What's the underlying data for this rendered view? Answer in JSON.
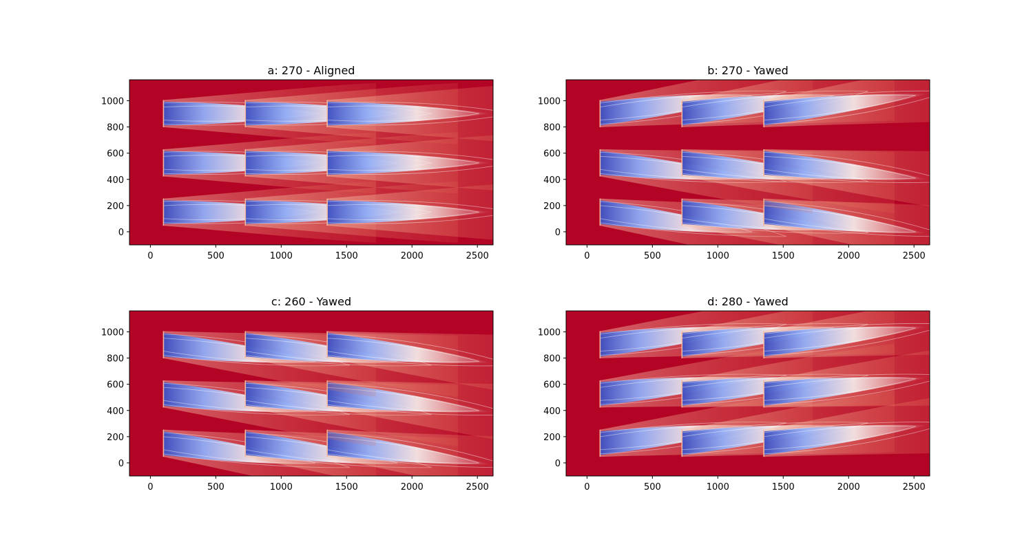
{
  "colors": {
    "background": "#b40426",
    "wake_deep": "#3b4cc0",
    "wake_light": "#f7f7f7",
    "contour_line": "#ffffff",
    "colormap": "coolwarm"
  },
  "chart_data": [
    {
      "type": "heatmap",
      "title": "a: 270 - Aligned",
      "xlim": [
        -160,
        2620
      ],
      "ylim": [
        -100,
        1160
      ],
      "xticks": [
        0,
        500,
        1000,
        1500,
        2000,
        2500
      ],
      "yticks": [
        0,
        200,
        400,
        600,
        800,
        1000
      ],
      "grid": false,
      "turbines": [
        {
          "x": 100,
          "y": 150,
          "deflection": 0
        },
        {
          "x": 726,
          "y": 150,
          "deflection": 0
        },
        {
          "x": 1352,
          "y": 150,
          "deflection": 0
        },
        {
          "x": 100,
          "y": 526,
          "deflection": 0
        },
        {
          "x": 726,
          "y": 526,
          "deflection": 0
        },
        {
          "x": 1352,
          "y": 526,
          "deflection": 0
        },
        {
          "x": 100,
          "y": 902,
          "deflection": 0
        },
        {
          "x": 726,
          "y": 902,
          "deflection": 0
        },
        {
          "x": 1352,
          "y": 902,
          "deflection": 0
        }
      ]
    },
    {
      "type": "heatmap",
      "title": "b: 270 - Yawed",
      "xlim": [
        -160,
        2620
      ],
      "ylim": [
        -100,
        1160
      ],
      "xticks": [
        0,
        500,
        1000,
        1500,
        2000,
        2500
      ],
      "yticks": [
        0,
        200,
        400,
        600,
        800,
        1000
      ],
      "grid": false,
      "turbines": [
        {
          "x": 100,
          "y": 150,
          "deflection": -0.13
        },
        {
          "x": 726,
          "y": 150,
          "deflection": -0.11
        },
        {
          "x": 1352,
          "y": 150,
          "deflection": -0.13
        },
        {
          "x": 100,
          "y": 526,
          "deflection": -0.1
        },
        {
          "x": 726,
          "y": 526,
          "deflection": -0.1
        },
        {
          "x": 1352,
          "y": 526,
          "deflection": -0.1
        },
        {
          "x": 100,
          "y": 902,
          "deflection": 0.12
        },
        {
          "x": 726,
          "y": 902,
          "deflection": 0.12
        },
        {
          "x": 1352,
          "y": 902,
          "deflection": 0.12
        }
      ]
    },
    {
      "type": "heatmap",
      "title": "c: 260 - Yawed",
      "xlim": [
        -160,
        2620
      ],
      "ylim": [
        -100,
        1160
      ],
      "xticks": [
        0,
        500,
        1000,
        1500,
        2000,
        2500
      ],
      "yticks": [
        0,
        200,
        400,
        600,
        800,
        1000
      ],
      "grid": false,
      "turbines": [
        {
          "x": 100,
          "y": 150,
          "deflection": -0.13
        },
        {
          "x": 726,
          "y": 150,
          "deflection": -0.13
        },
        {
          "x": 1352,
          "y": 150,
          "deflection": -0.13
        },
        {
          "x": 100,
          "y": 526,
          "deflection": -0.11
        },
        {
          "x": 726,
          "y": 526,
          "deflection": -0.11
        },
        {
          "x": 1352,
          "y": 526,
          "deflection": -0.11
        },
        {
          "x": 100,
          "y": 902,
          "deflection": -0.11
        },
        {
          "x": 726,
          "y": 902,
          "deflection": -0.11
        },
        {
          "x": 1352,
          "y": 902,
          "deflection": -0.11
        }
      ]
    },
    {
      "type": "heatmap",
      "title": "d: 280 - Yawed",
      "xlim": [
        -160,
        2620
      ],
      "ylim": [
        -100,
        1160
      ],
      "xticks": [
        0,
        500,
        1000,
        1500,
        2000,
        2500
      ],
      "yticks": [
        0,
        200,
        400,
        600,
        800,
        1000
      ],
      "grid": false,
      "turbines": [
        {
          "x": 100,
          "y": 150,
          "deflection": 0.11
        },
        {
          "x": 726,
          "y": 150,
          "deflection": 0.11
        },
        {
          "x": 1352,
          "y": 150,
          "deflection": 0.11
        },
        {
          "x": 100,
          "y": 526,
          "deflection": 0.1
        },
        {
          "x": 726,
          "y": 526,
          "deflection": 0.1
        },
        {
          "x": 1352,
          "y": 526,
          "deflection": 0.1
        },
        {
          "x": 100,
          "y": 902,
          "deflection": 0.11
        },
        {
          "x": 726,
          "y": 902,
          "deflection": 0.11
        },
        {
          "x": 1352,
          "y": 902,
          "deflection": 0.11
        }
      ]
    }
  ]
}
